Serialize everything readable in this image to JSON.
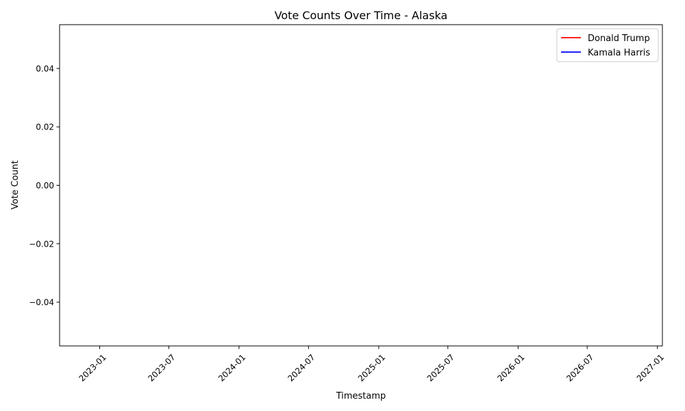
{
  "chart_data": {
    "type": "line",
    "title": "Vote Counts Over Time - Alaska",
    "xlabel": "Timestamp",
    "ylabel": "Vote Count",
    "x_axis_type": "date",
    "xlim": [
      "2022-09-18",
      "2027-01-14"
    ],
    "ylim": [
      -0.055,
      0.055
    ],
    "x_ticks": [
      "2023-01",
      "2023-07",
      "2024-01",
      "2024-07",
      "2025-01",
      "2025-07",
      "2026-01",
      "2026-07",
      "2027-01"
    ],
    "y_ticks": [
      -0.04,
      -0.02,
      0.0,
      0.02,
      0.04
    ],
    "y_tick_labels": [
      "−0.04",
      "−0.02",
      "0.00",
      "0.02",
      "0.04"
    ],
    "grid": false,
    "legend_position": "top-right",
    "series": [
      {
        "name": "Donald Trump",
        "color": "#ff0000",
        "x": [],
        "y": []
      },
      {
        "name": "Kamala Harris",
        "color": "#0000ff",
        "x": [],
        "y": []
      }
    ]
  }
}
